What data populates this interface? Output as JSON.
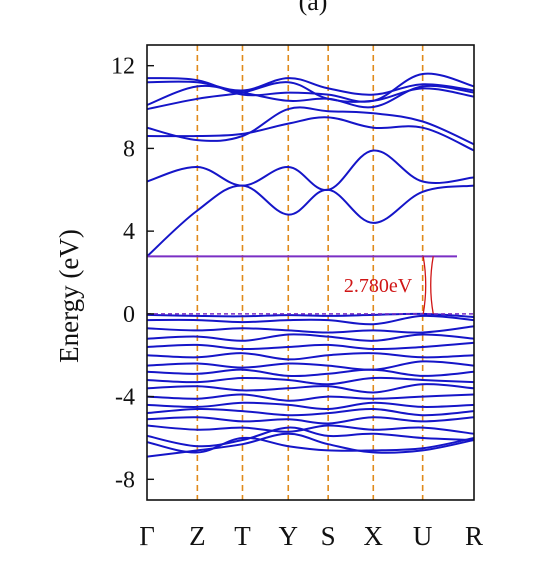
{
  "chart_data": {
    "type": "line",
    "title": "(a)",
    "ylabel": "Energy (eV)",
    "ylim": [
      -9,
      13
    ],
    "yticks": [
      -8,
      -4,
      0,
      4,
      8,
      12
    ],
    "kpoints": [
      {
        "label": "Γ",
        "x": 0.0
      },
      {
        "label": "Z",
        "x": 1.54
      },
      {
        "label": "T",
        "x": 2.92
      },
      {
        "label": "Y",
        "x": 4.32
      },
      {
        "label": "S",
        "x": 5.54
      },
      {
        "label": "X",
        "x": 6.92
      },
      {
        "label": "U",
        "x": 8.43
      },
      {
        "label": "R",
        "x": 10.0
      }
    ],
    "band_gap": {
      "value": 2.78,
      "label": "2.780eV",
      "cbm": 2.78,
      "vbm": 0.0,
      "x": 8.6
    },
    "conduction_bands": [
      [
        2.78,
        5.0,
        6.2,
        4.8,
        6.0,
        4.4,
        5.9,
        6.2
      ],
      [
        6.4,
        7.1,
        6.2,
        7.1,
        6.0,
        7.9,
        6.4,
        6.6
      ],
      [
        8.6,
        8.6,
        8.7,
        9.2,
        9.5,
        9.0,
        9.0,
        7.9
      ],
      [
        9.0,
        8.4,
        8.6,
        9.9,
        9.8,
        9.7,
        9.3,
        8.2
      ],
      [
        9.9,
        10.4,
        10.7,
        11.2,
        10.4,
        10.3,
        10.9,
        10.5
      ],
      [
        10.1,
        11.0,
        10.7,
        10.3,
        10.4,
        10.0,
        11.0,
        10.7
      ],
      [
        11.2,
        11.2,
        10.8,
        11.4,
        10.9,
        10.6,
        11.1,
        10.8
      ],
      [
        11.4,
        11.3,
        10.6,
        10.7,
        10.6,
        10.3,
        11.6,
        11.0
      ]
    ],
    "valence_bands": [
      [
        -0.05,
        -0.1,
        -0.12,
        -0.06,
        -0.1,
        -0.05,
        0.0,
        -0.15
      ],
      [
        -0.3,
        -0.3,
        -0.4,
        -0.3,
        -0.3,
        -0.5,
        -0.1,
        -0.3
      ],
      [
        -0.7,
        -0.8,
        -0.7,
        -0.8,
        -0.9,
        -0.8,
        -0.9,
        -0.6
      ],
      [
        -1.2,
        -1.1,
        -1.3,
        -1.0,
        -1.1,
        -1.3,
        -1.0,
        -1.2
      ],
      [
        -1.6,
        -1.5,
        -1.7,
        -1.6,
        -1.5,
        -1.7,
        -1.6,
        -1.4
      ],
      [
        -2.0,
        -2.1,
        -1.9,
        -2.2,
        -2.0,
        -1.9,
        -2.1,
        -2.0
      ],
      [
        -2.5,
        -2.4,
        -2.6,
        -2.4,
        -2.5,
        -2.7,
        -2.3,
        -2.5
      ],
      [
        -2.8,
        -2.9,
        -2.7,
        -3.0,
        -2.9,
        -2.7,
        -3.0,
        -2.8
      ],
      [
        -3.2,
        -3.3,
        -3.1,
        -3.2,
        -3.4,
        -3.1,
        -3.2,
        -3.3
      ],
      [
        -3.6,
        -3.5,
        -3.7,
        -3.6,
        -3.5,
        -3.8,
        -3.4,
        -3.6
      ],
      [
        -4.0,
        -4.1,
        -3.9,
        -4.2,
        -4.0,
        -4.1,
        -4.0,
        -3.9
      ],
      [
        -4.4,
        -4.5,
        -4.3,
        -4.4,
        -4.6,
        -4.3,
        -4.5,
        -4.4
      ],
      [
        -4.8,
        -4.6,
        -4.7,
        -4.9,
        -4.8,
        -4.6,
        -4.9,
        -4.7
      ],
      [
        -5.1,
        -5.0,
        -5.2,
        -5.1,
        -5.3,
        -5.0,
        -5.2,
        -5.0
      ],
      [
        -5.4,
        -5.6,
        -5.5,
        -5.7,
        -5.4,
        -5.6,
        -5.5,
        -5.8
      ],
      [
        -5.9,
        -6.4,
        -6.1,
        -5.5,
        -5.9,
        -5.8,
        -6.0,
        -6.1
      ],
      [
        -6.2,
        -6.7,
        -6.0,
        -6.4,
        -6.6,
        -6.6,
        -6.5,
        -6.0
      ],
      [
        -6.9,
        -6.6,
        -6.3,
        -5.8,
        -6.3,
        -6.7,
        -6.6,
        -6.1
      ]
    ],
    "colors": {
      "bands": "#1515c8",
      "kpath_lines": "#e08a1a",
      "cbm_line": "#7a2fc4",
      "vbm_line": "#7a2fc4",
      "gap_annotation": "#d01515"
    }
  }
}
